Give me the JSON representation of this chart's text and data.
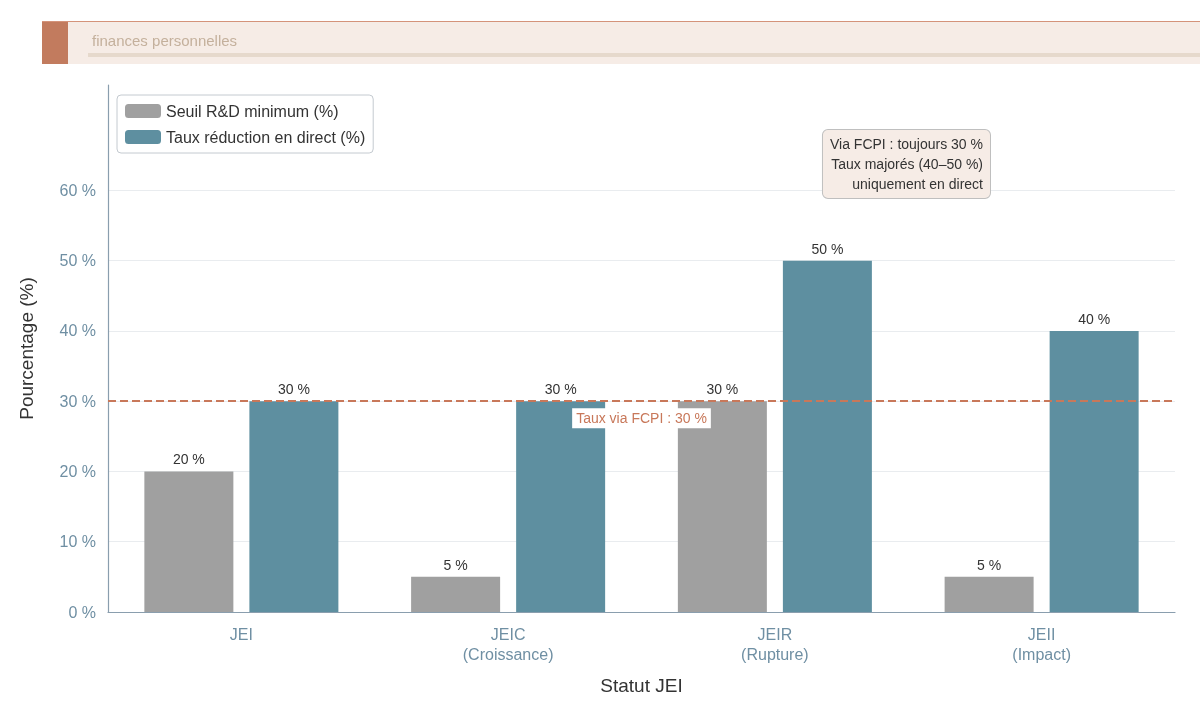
{
  "chart_data": {
    "type": "bar",
    "subtitle": "finances personnelles",
    "xlabel": "Statut JEI",
    "ylabel": "Pourcentage (%)",
    "categories": [
      "JEI",
      "JEIC\n(Croissance)",
      "JEIR\n(Rupture)",
      "JEII\n(Impact)"
    ],
    "series": [
      {
        "name": "Seuil R&D minimum (%)",
        "color": "#a0a0a0",
        "values": [
          20,
          5,
          30,
          5
        ],
        "value_labels": [
          "20 %",
          "5 %",
          "30 %",
          "5 %"
        ]
      },
      {
        "name": "Taux réduction en direct (%)",
        "color": "#5e8fa0",
        "values": [
          30,
          30,
          50,
          40
        ],
        "value_labels": [
          "30 %",
          "30 %",
          "50 %",
          "40 %"
        ]
      }
    ],
    "ylim": [
      0,
      75
    ],
    "yticks": [
      {
        "value": 0,
        "label": "0 %"
      },
      {
        "value": 10,
        "label": "10 %"
      },
      {
        "value": 20,
        "label": "20 %"
      },
      {
        "value": 30,
        "label": "30 %"
      },
      {
        "value": 40,
        "label": "40 %"
      },
      {
        "value": 50,
        "label": "50 %"
      },
      {
        "value": 60,
        "label": "60 %"
      }
    ],
    "grid": "y",
    "legend": "top left",
    "ref_lines": [
      {
        "axis": "y",
        "value": 30,
        "label": "Taux via FCPI : 30 %",
        "color": "#c8785a",
        "line_style": "dashed"
      }
    ],
    "annotations": [
      "Via FCPI : toujours 30 %\nTaux majorés (40–50 %)\nuniquement en direct"
    ]
  }
}
